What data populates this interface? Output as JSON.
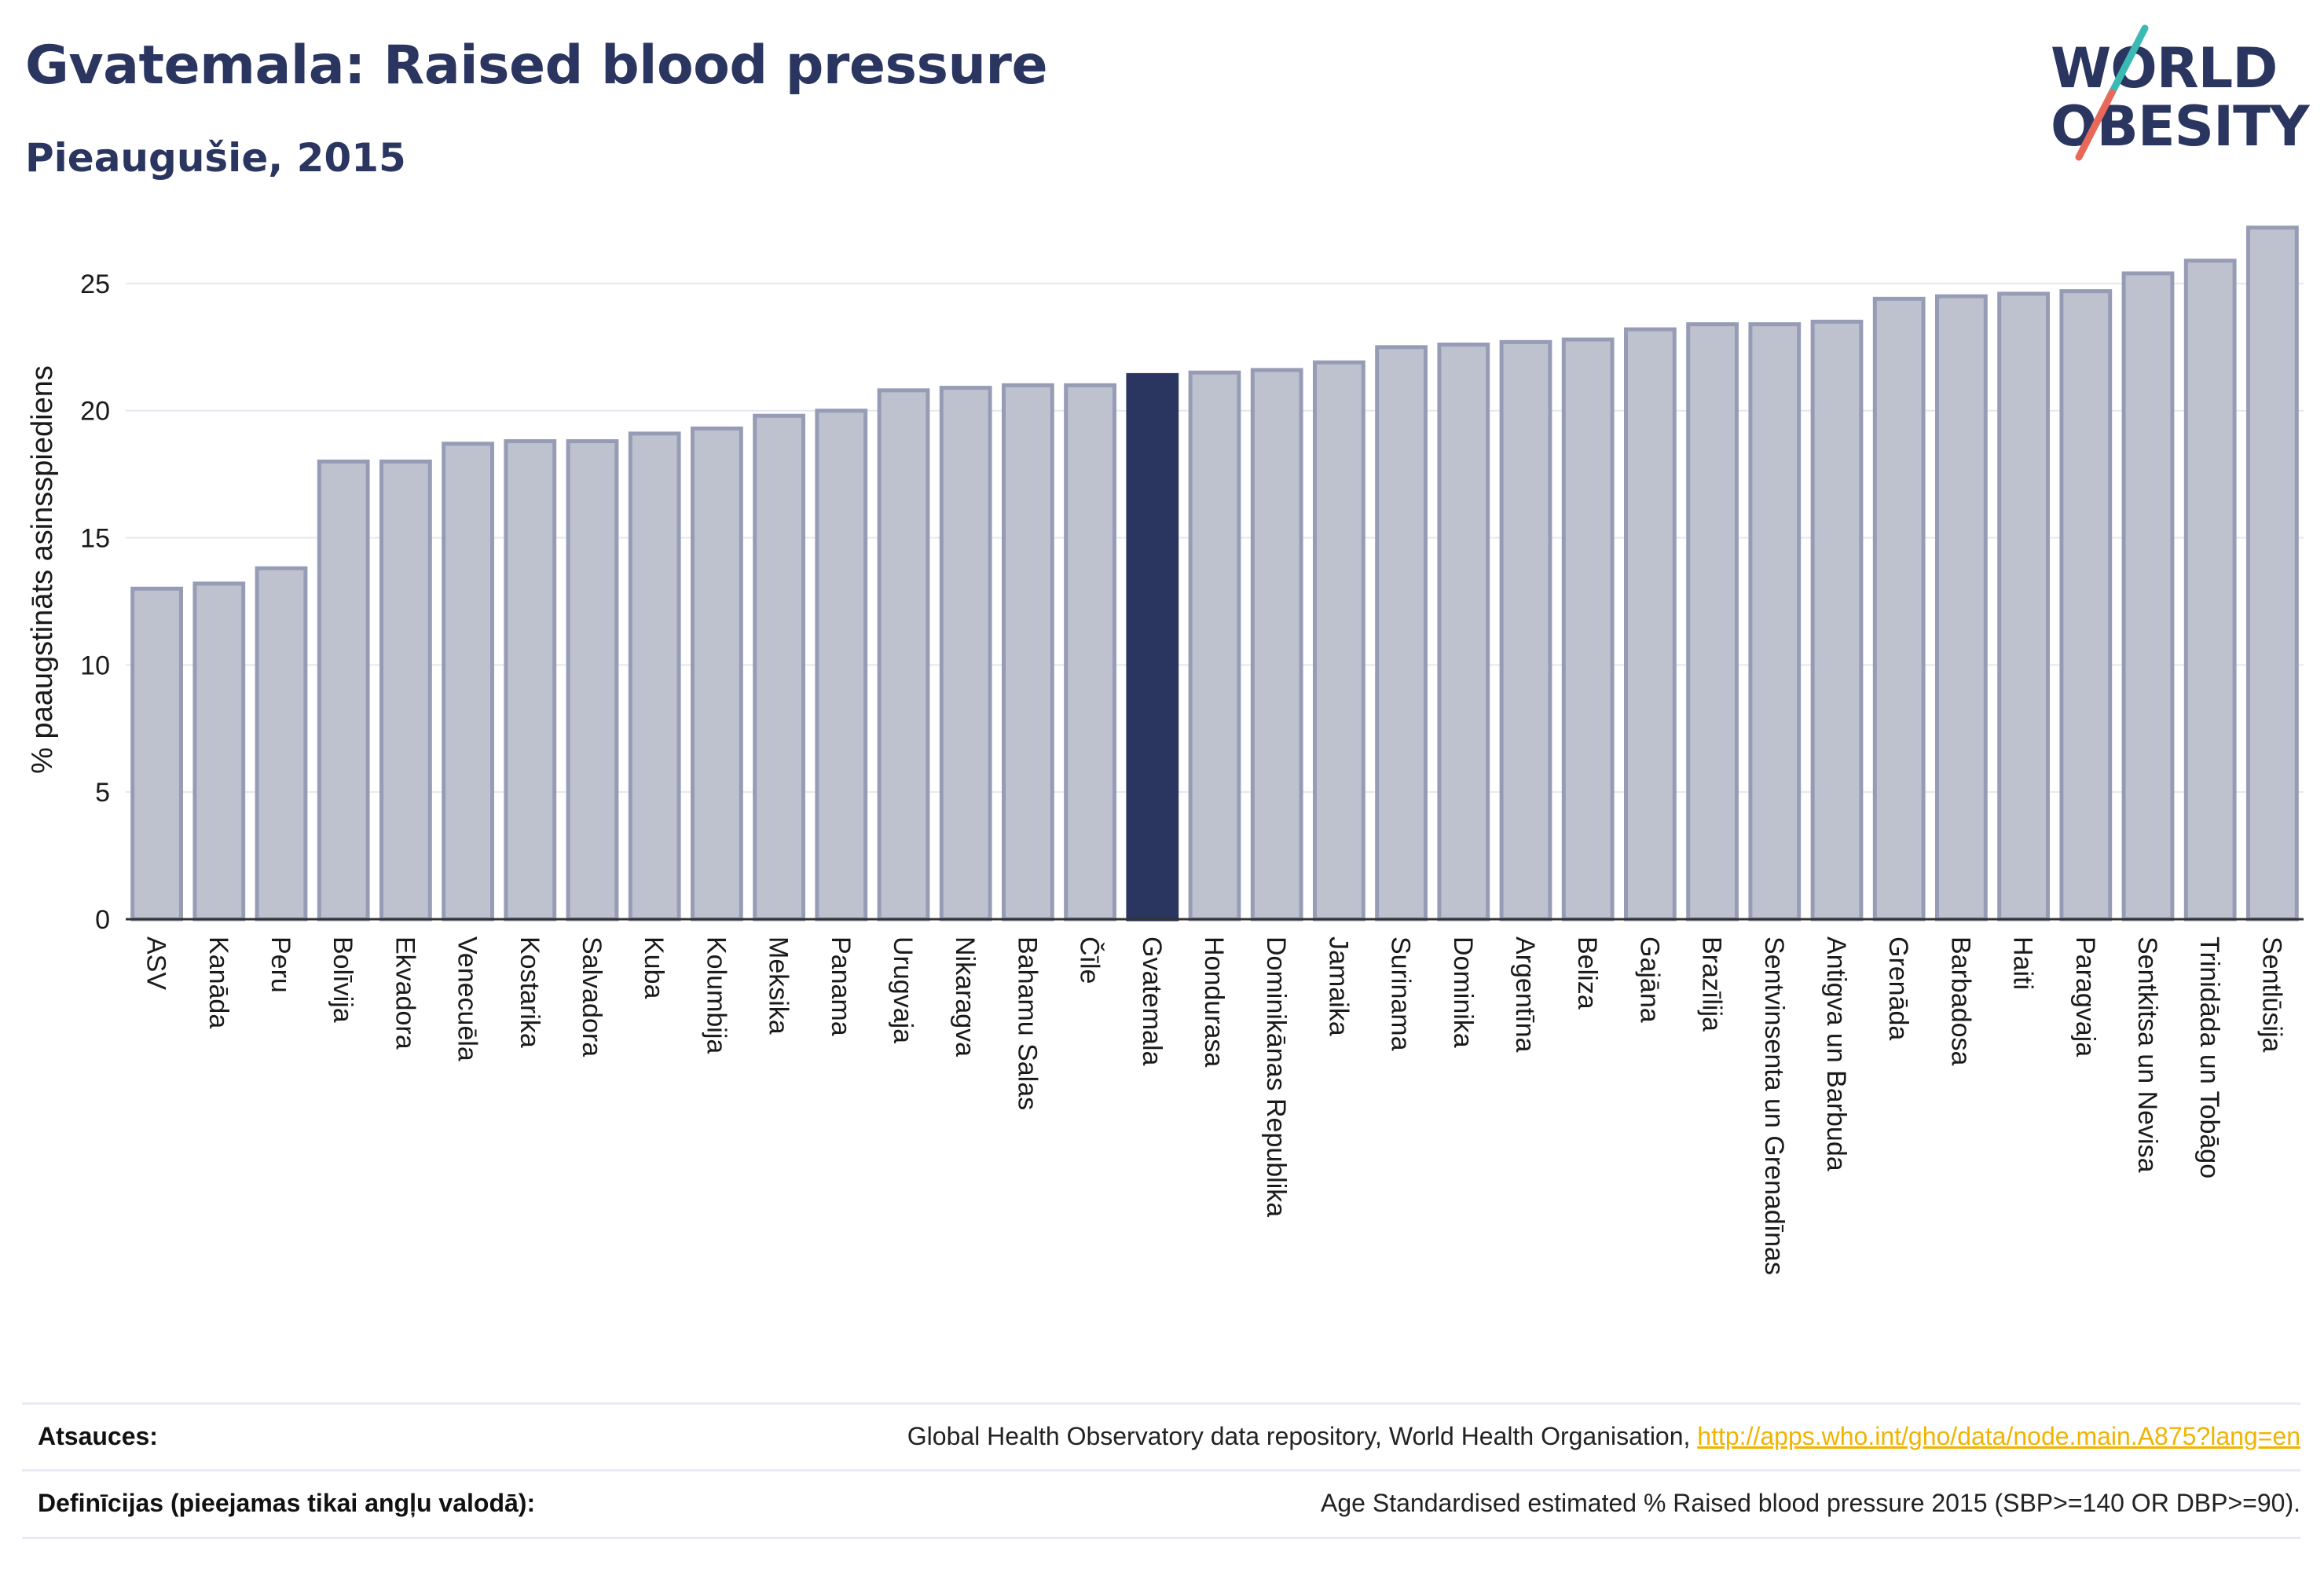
{
  "header": {
    "title": "Gvatemala: Raised blood pressure",
    "subtitle": "Pieaugušie, 2015"
  },
  "logo": {
    "line1": "WORLD",
    "line2": "OBESITY",
    "slash_colors": [
      "#3bb9b4",
      "#e8685a"
    ]
  },
  "colors": {
    "bar": "#bec1ce",
    "bar_stroke": "#979cb6",
    "highlight": "#2a3560",
    "grid": "#e5e7ee",
    "text": "#1a1a1a"
  },
  "chart_data": {
    "type": "bar",
    "title": "",
    "xlabel": "",
    "ylabel": "% paaugstināts asinsspiediens",
    "ylim": [
      0,
      27.5
    ],
    "yticks": [
      0,
      5,
      10,
      15,
      20,
      25
    ],
    "grid": true,
    "highlight_category": "Gvatemala",
    "categories": [
      "ASV",
      "Kanāda",
      "Peru",
      "Bolīvija",
      "Ekvadora",
      "Venecuēla",
      "Kostarika",
      "Salvadora",
      "Kuba",
      "Kolumbija",
      "Meksika",
      "Panama",
      "Urugvaja",
      "Nikaragva",
      "Bahamu Salas",
      "Čīle",
      "Gvatemala",
      "Hondurasa",
      "Dominikānas Republika",
      "Jamaika",
      "Surinama",
      "Dominika",
      "Argentīna",
      "Beliza",
      "Gajāna",
      "Brazīlija",
      "Sentvinsenta un Grenadīnas",
      "Antigva un Barbuda",
      "Grenāda",
      "Barbadosa",
      "Haiti",
      "Paragvaja",
      "Sentkitsa un Nevisa",
      "Trinidāda un Tobāgo",
      "Sentlūsija"
    ],
    "values": [
      13.0,
      13.2,
      13.8,
      18.0,
      18.0,
      18.7,
      18.8,
      18.8,
      19.1,
      19.3,
      19.8,
      20.0,
      20.8,
      20.9,
      21.0,
      21.0,
      21.4,
      21.5,
      21.6,
      21.9,
      22.5,
      22.6,
      22.7,
      22.8,
      23.2,
      23.4,
      23.4,
      23.5,
      24.4,
      24.5,
      24.6,
      24.7,
      25.4,
      25.9,
      27.2
    ]
  },
  "footer": {
    "sources_label": "Atsauces:",
    "sources_text": "Global Health Observatory data repository, World Health Organisation, ",
    "sources_link": "http://apps.who.int/gho/data/node.main.A875?lang=en",
    "definitions_label": "Definīcijas (pieejamas tikai angļu valodā):",
    "definitions_text": "Age Standardised estimated % Raised blood pressure 2015 (SBP>=140 OR DBP>=90)."
  }
}
